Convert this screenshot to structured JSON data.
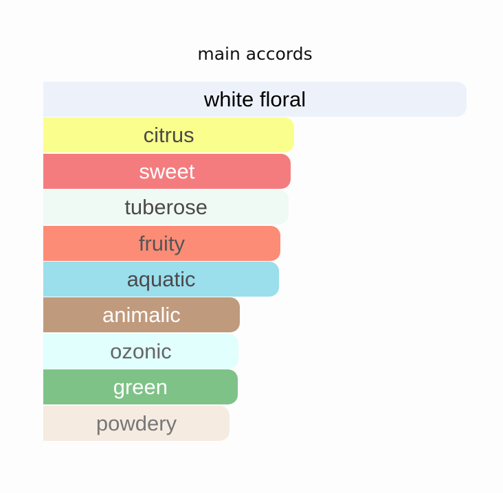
{
  "chart_data": {
    "type": "bar",
    "orientation": "horizontal",
    "title": "main accords",
    "value_unit": "percent of strongest accord",
    "categories": [
      "white floral",
      "citrus",
      "sweet",
      "tuberose",
      "fruity",
      "aquatic",
      "animalic",
      "ozonic",
      "green",
      "powdery"
    ],
    "values": [
      100,
      59.3,
      58.4,
      58,
      56,
      55.7,
      46.4,
      46.1,
      45.9,
      44
    ],
    "colors": [
      "#edf2fa",
      "#fafe8c",
      "#f47c7f",
      "#f0faf4",
      "#fc8c76",
      "#9bdeec",
      "#c09a7d",
      "#e0fffd",
      "#7ec287",
      "#f5ebe1"
    ],
    "text_colors": [
      "#000000",
      "#4a4a4a",
      "#ffffff",
      "#4a4a4a",
      "#555555",
      "#4a4a4a",
      "#ffffff",
      "#666666",
      "#ffffff",
      "#777777"
    ],
    "grid": false,
    "legend": "none"
  }
}
